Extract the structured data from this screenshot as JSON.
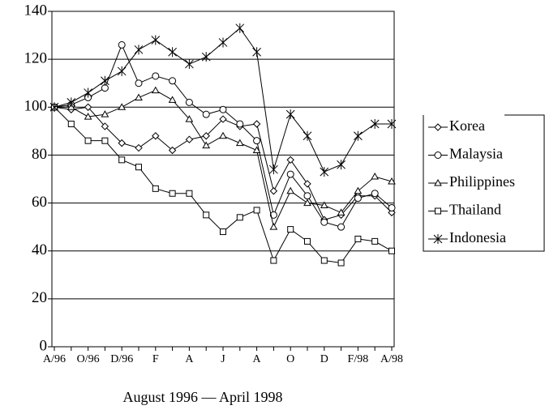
{
  "chart_data": {
    "type": "line",
    "x_label": "August 1996 — April 1998",
    "categories": [
      "A/96",
      null,
      "O/96",
      null,
      "D/96",
      null,
      "F",
      null,
      "A",
      null,
      "J",
      null,
      "A",
      null,
      "O",
      null,
      "D",
      null,
      "F/98",
      null,
      "A/98"
    ],
    "series": [
      {
        "name": "Korea",
        "color": "#000",
        "marker": "diamond",
        "values": [
          100,
          99,
          100,
          92,
          85,
          83,
          88,
          82,
          86.5,
          88,
          95,
          92,
          93,
          65,
          78,
          68,
          53,
          55,
          63,
          63,
          56
        ]
      },
      {
        "name": "Malaysia",
        "color": "#000",
        "marker": "circle",
        "values": [
          100,
          101,
          104,
          108,
          126,
          110,
          113,
          111,
          102,
          97,
          99,
          93,
          86,
          55,
          72,
          63,
          52,
          50,
          62,
          64,
          58
        ]
      },
      {
        "name": "Philippines",
        "color": "#000",
        "marker": "triangle",
        "values": [
          100,
          100,
          96,
          97,
          100,
          104,
          107,
          103,
          95,
          84,
          88,
          85,
          82,
          50,
          65,
          60,
          59,
          56,
          65,
          71,
          69
        ]
      },
      {
        "name": "Thailand",
        "color": "#000",
        "marker": "square",
        "values": [
          100,
          93,
          86,
          86,
          78,
          75,
          66,
          64,
          64,
          55,
          48,
          54,
          57,
          36,
          49,
          44,
          36,
          35,
          45,
          44,
          40
        ]
      },
      {
        "name": "Indonesia",
        "color": "#000",
        "marker": "star",
        "values": [
          100,
          102,
          106,
          111,
          115,
          124,
          128,
          123,
          118,
          121,
          127,
          133,
          123,
          74,
          97,
          88,
          73,
          76,
          88,
          93,
          93
        ]
      }
    ],
    "ylim": [
      0,
      140
    ],
    "yticks": [
      0,
      20,
      40,
      60,
      80,
      100,
      120,
      140
    ],
    "grid": true,
    "legend": "right"
  }
}
